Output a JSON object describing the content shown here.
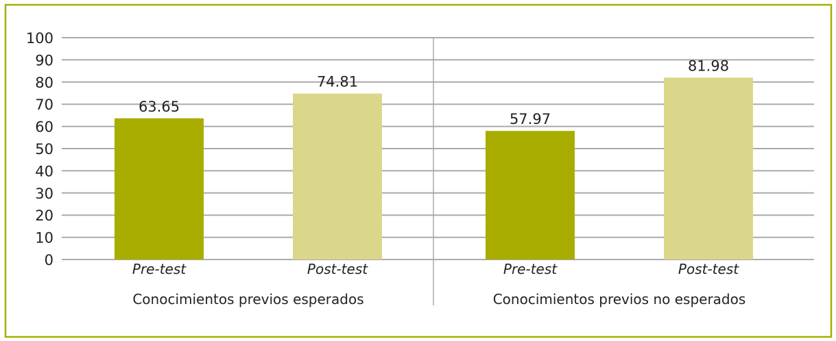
{
  "chart_data": {
    "type": "bar",
    "title": "",
    "xlabel": "",
    "ylabel": "",
    "ylim": [
      0,
      100
    ],
    "yticks": [
      0,
      10,
      20,
      30,
      40,
      50,
      60,
      70,
      80,
      90,
      100
    ],
    "grid": true,
    "groups": [
      {
        "label": "Conocimientos previos esperados",
        "categories": [
          "Pre-test",
          "Post-test"
        ],
        "values": [
          63.65,
          74.81
        ],
        "data_labels": [
          "63.65",
          "74.81"
        ]
      },
      {
        "label": "Conocimientos previos no esperados",
        "categories": [
          "Pre-test",
          "Post-test"
        ],
        "values": [
          57.97,
          81.98
        ],
        "data_labels": [
          "57.97",
          "81.98"
        ]
      }
    ],
    "colors": {
      "Pre-test": "#a8ad00",
      "Post-test": "#dbd78a",
      "border": "#a8ad00",
      "grid": "#aaaaaa"
    }
  }
}
